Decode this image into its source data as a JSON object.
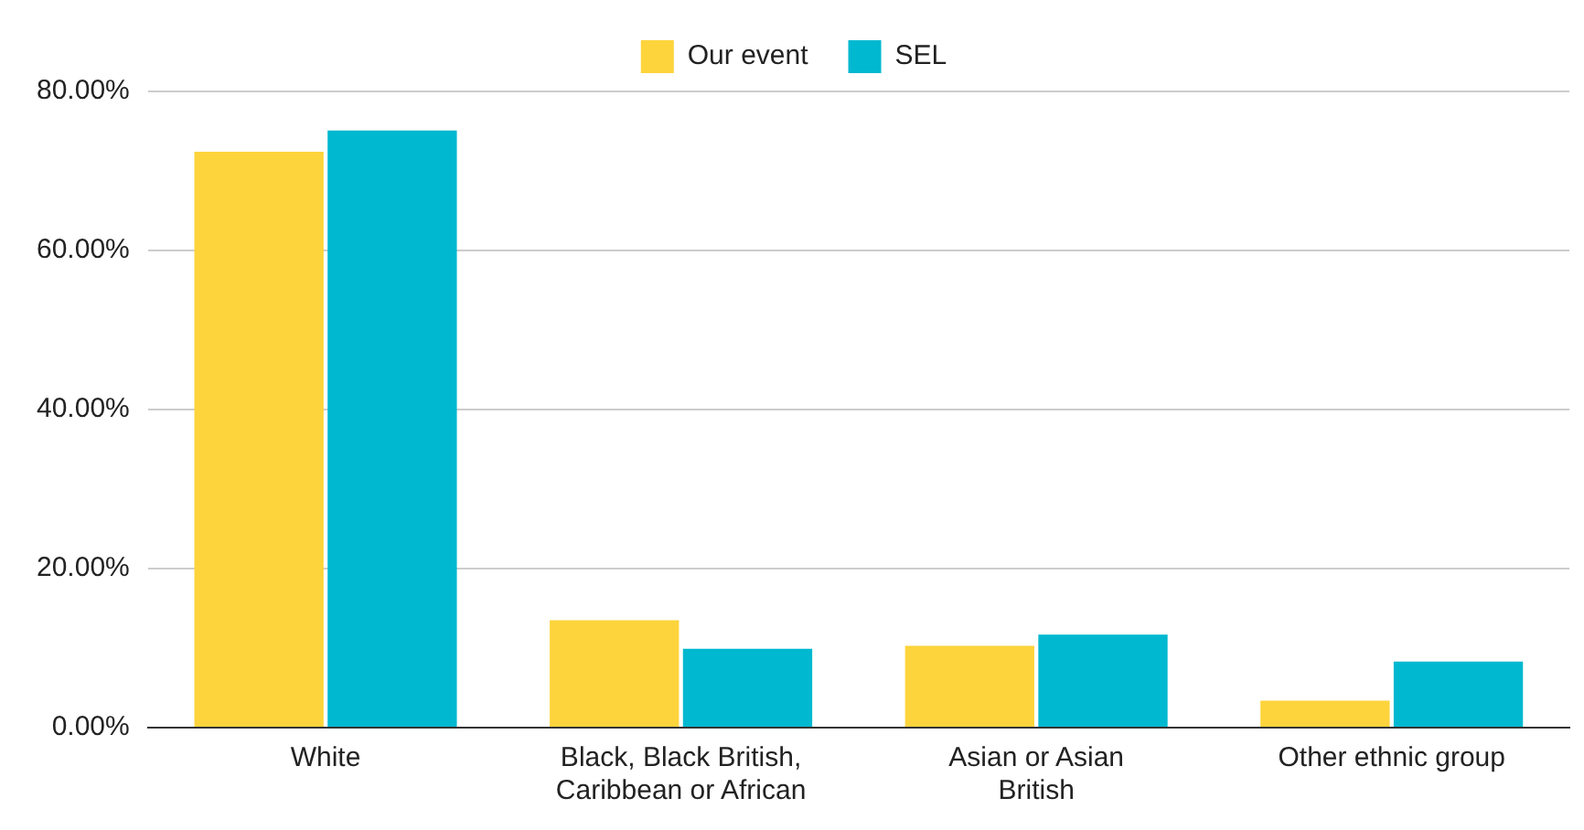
{
  "chart_data": {
    "type": "bar",
    "categories": [
      "White",
      "Black, Black British, Caribbean or African",
      "Asian or Asian British",
      "Other ethnic group"
    ],
    "series": [
      {
        "name": "Our event",
        "color": "#fdd43c",
        "values": [
          72.4,
          13.5,
          10.3,
          3.4
        ]
      },
      {
        "name": "SEL",
        "color": "#00b8d0",
        "values": [
          75.1,
          9.9,
          11.7,
          8.3
        ]
      }
    ],
    "ylim": [
      0,
      80
    ],
    "yticks": [
      {
        "value": 0,
        "label": "0.00%"
      },
      {
        "value": 20,
        "label": "20.00%"
      },
      {
        "value": 40,
        "label": "40.00%"
      },
      {
        "value": 60,
        "label": "60.00%"
      },
      {
        "value": 80,
        "label": "80.00%"
      }
    ],
    "grid": "y",
    "legend": "top"
  }
}
